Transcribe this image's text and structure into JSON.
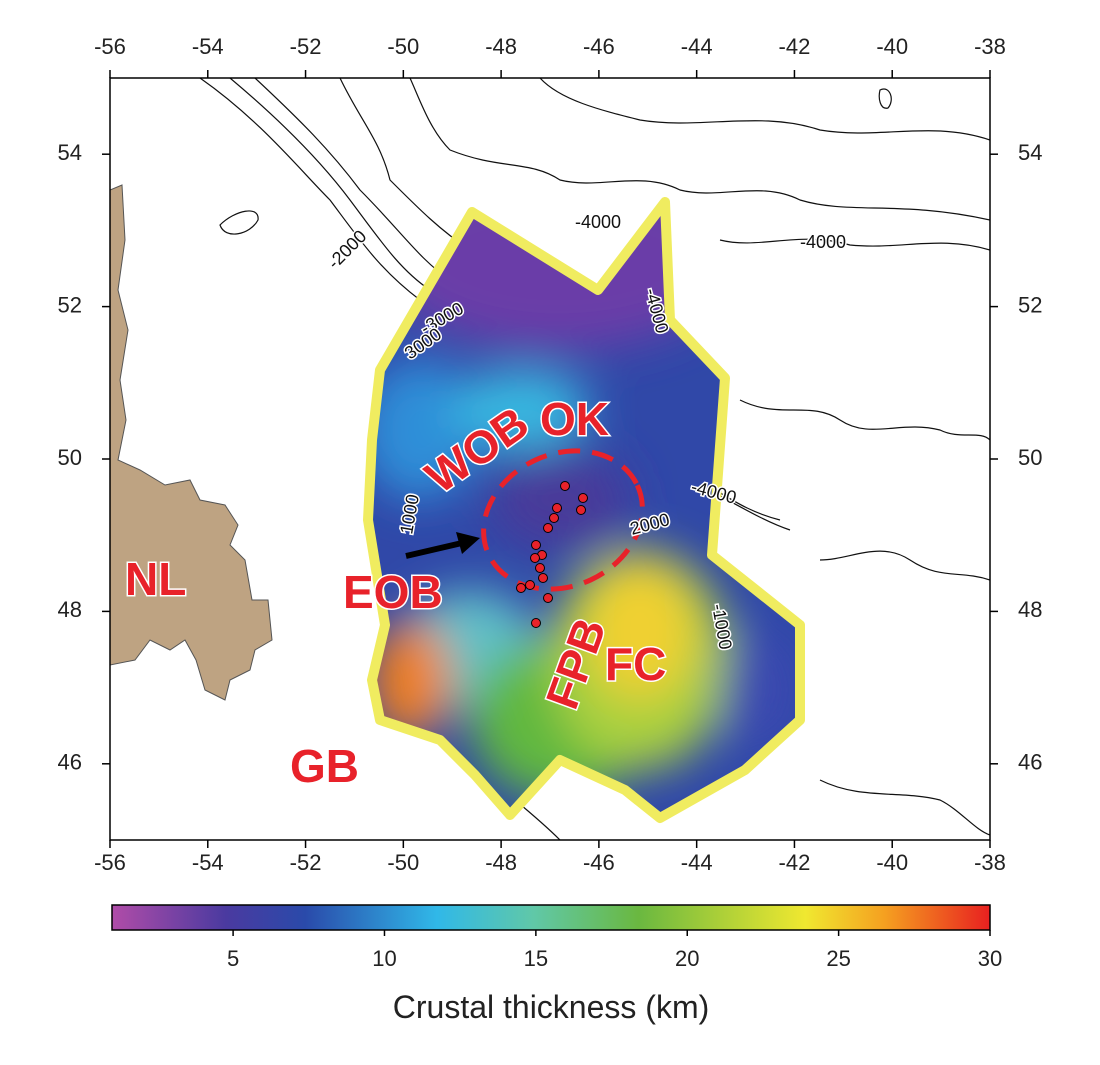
{
  "map": {
    "xlim": [
      -56,
      -38
    ],
    "ylim": [
      45,
      55
    ],
    "xticks": [
      -56,
      -54,
      -52,
      -50,
      -48,
      -46,
      -44,
      -42,
      -40,
      -38
    ],
    "yticks": [
      46,
      48,
      50,
      52,
      54
    ],
    "region_labels": [
      "NL",
      "GB",
      "EOB",
      "WOB",
      "OK",
      "FPB",
      "FC"
    ],
    "contour_labels": [
      "-4000",
      "-4000",
      "-4000",
      "-2000",
      "-3000",
      "-4000",
      "3000",
      "2000",
      "1000",
      "-1000"
    ],
    "colorbar": {
      "lim": [
        1,
        30
      ],
      "ticks": [
        5,
        10,
        15,
        20,
        25,
        30
      ],
      "label": "Crustal thickness (km)"
    }
  }
}
